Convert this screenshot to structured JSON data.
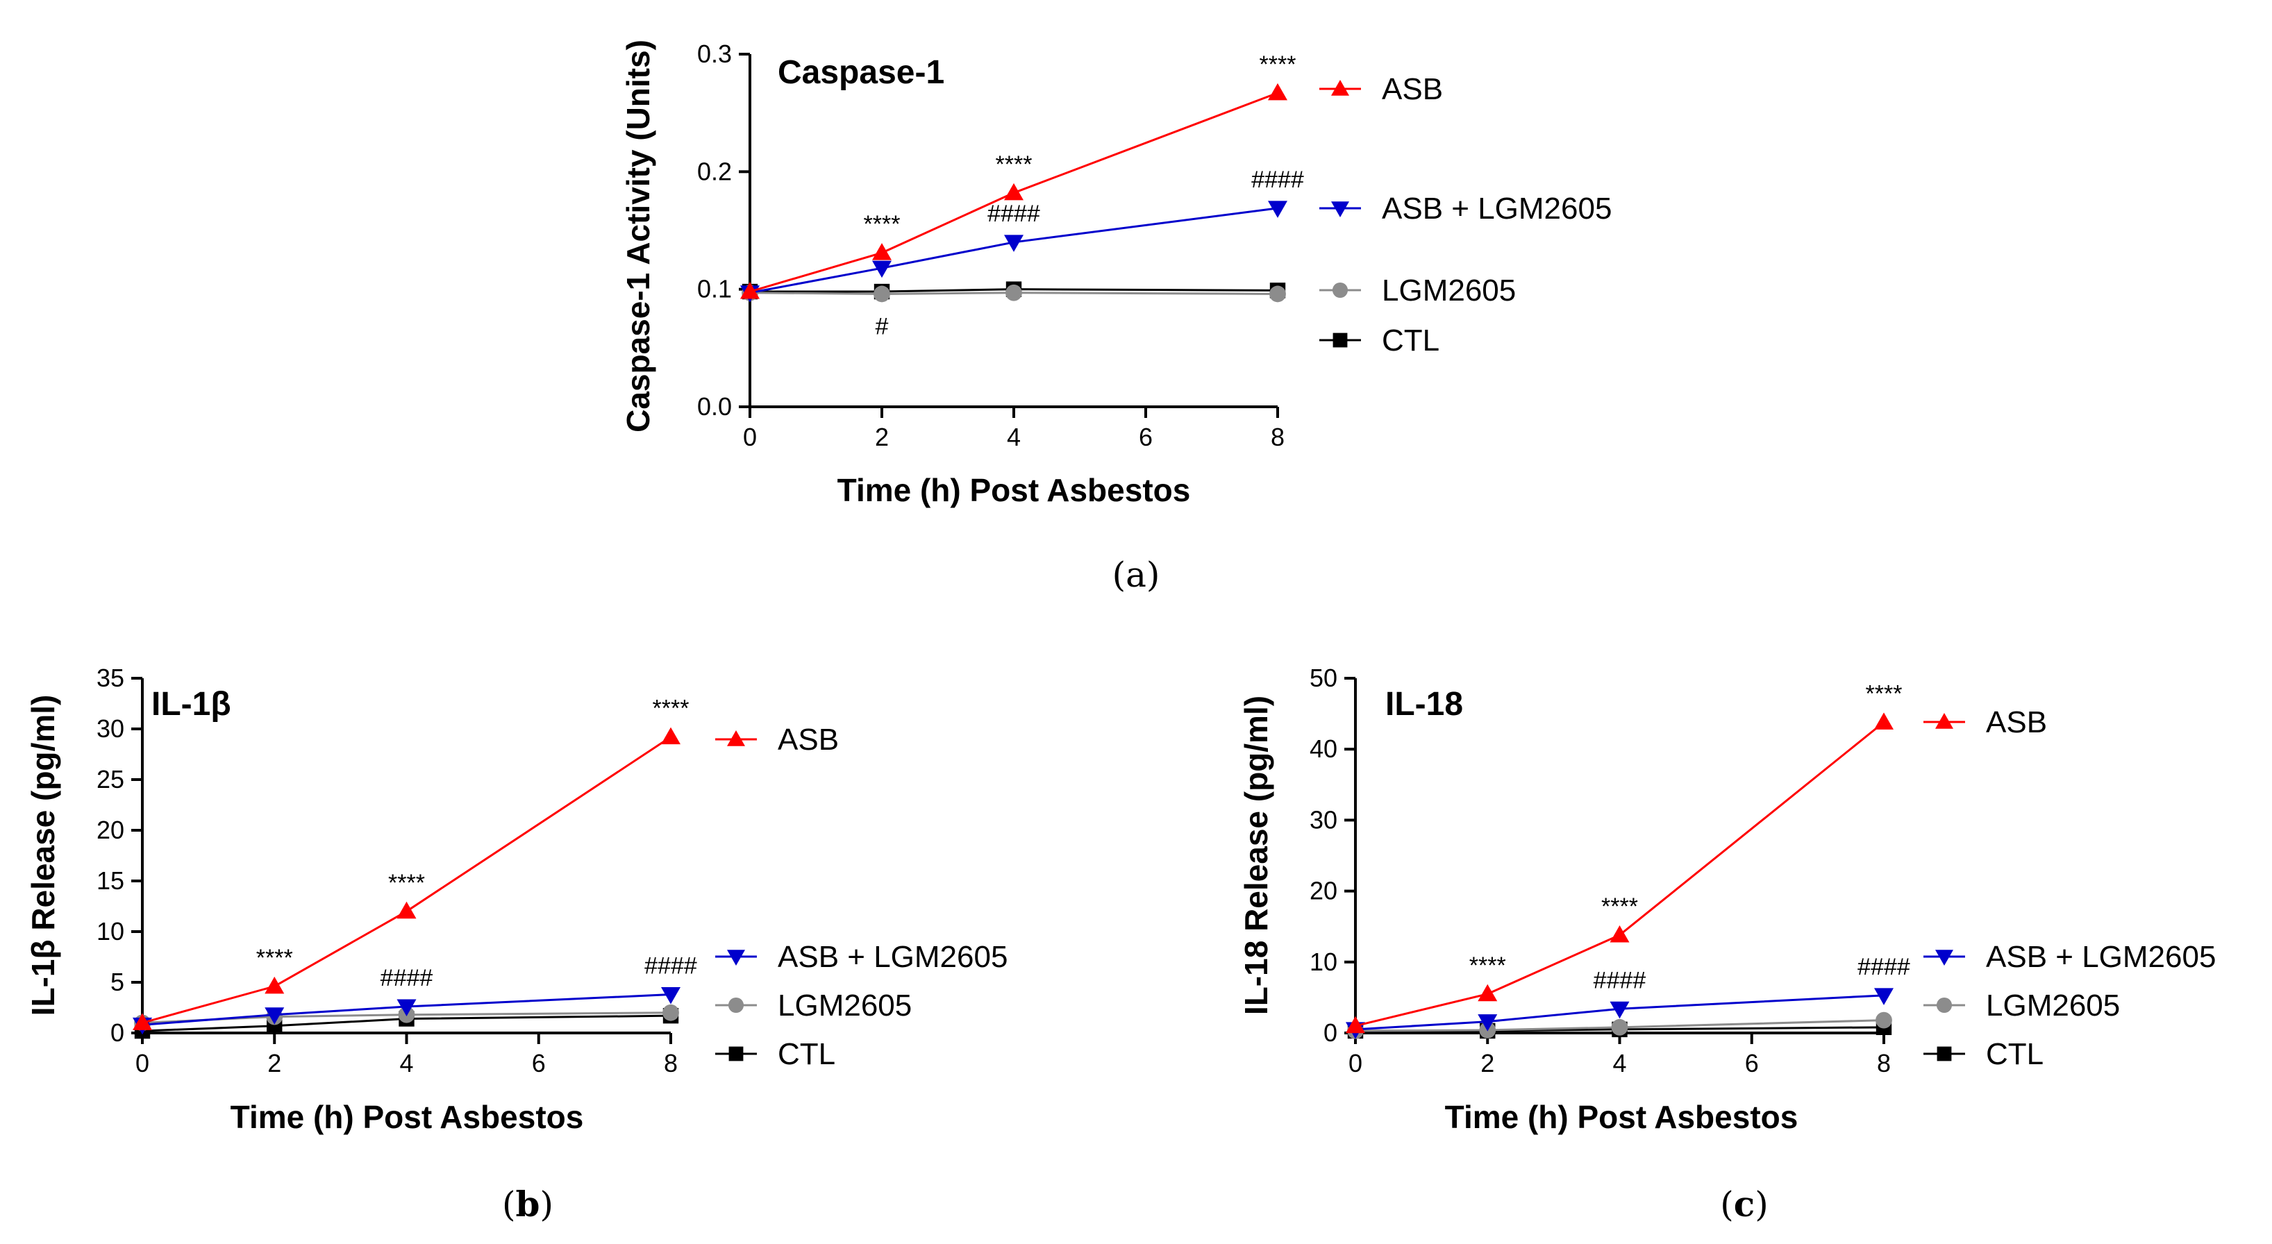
{
  "chart_data": [
    {
      "type": "line",
      "panel": "a",
      "panel_label": "a",
      "title": "Caspase-1",
      "xlabel": "Time (h) Post Asbestos",
      "ylabel": "Caspase-1 Activity (Units)",
      "xlim": [
        0,
        8
      ],
      "ylim": [
        0,
        0.3
      ],
      "xticks": [
        0,
        2,
        4,
        6,
        8
      ],
      "xtick_labels": [
        "0",
        "2",
        "4",
        "6",
        "8"
      ],
      "yticks": [
        0,
        0.1,
        0.2,
        0.3
      ],
      "ytick_labels": [
        "0.0",
        "0.1",
        "0.2",
        "0.3"
      ],
      "x": [
        0,
        2,
        4,
        8
      ],
      "series": [
        {
          "name": "ASB",
          "color": "#ff0000",
          "marker": "triangle-up",
          "values": [
            0.098,
            0.131,
            0.182,
            0.267
          ]
        },
        {
          "name": "ASB + LGM2605",
          "color": "#0000cc",
          "marker": "triangle-down",
          "values": [
            0.097,
            0.118,
            0.14,
            0.169
          ]
        },
        {
          "name": "LGM2605",
          "color": "#8c8c8c",
          "marker": "circle",
          "values": [
            0.097,
            0.096,
            0.097,
            0.096
          ]
        },
        {
          "name": "CTL",
          "color": "#000000",
          "marker": "square",
          "values": [
            0.098,
            0.098,
            0.1,
            0.099
          ]
        }
      ],
      "annotations": [
        {
          "text": "****",
          "x": 2,
          "y": 0.131,
          "series": "ASB",
          "position": "above"
        },
        {
          "text": "****",
          "x": 4,
          "y": 0.182,
          "series": "ASB",
          "position": "above"
        },
        {
          "text": "****",
          "x": 8,
          "y": 0.267,
          "series": "ASB",
          "position": "above"
        },
        {
          "text": "####",
          "x": 4,
          "y": 0.14,
          "series": "ASB + LGM2605",
          "position": "above"
        },
        {
          "text": "####",
          "x": 8,
          "y": 0.169,
          "series": "ASB + LGM2605",
          "position": "above"
        },
        {
          "text": "#",
          "x": 2,
          "y": 0.096,
          "series": "LGM2605",
          "position": "below"
        }
      ]
    },
    {
      "type": "line",
      "panel": "b",
      "panel_label": "b",
      "title": "IL-1β",
      "xlabel": "Time (h) Post Asbestos",
      "ylabel": "IL-1β Release (pg/ml)",
      "xlim": [
        0,
        8
      ],
      "ylim": [
        0,
        35
      ],
      "xticks": [
        0,
        2,
        4,
        6,
        8
      ],
      "xtick_labels": [
        "0",
        "2",
        "4",
        "6",
        "8"
      ],
      "yticks": [
        0,
        5,
        10,
        15,
        20,
        25,
        30,
        35
      ],
      "ytick_labels": [
        "0",
        "5",
        "10",
        "15",
        "20",
        "25",
        "30",
        "35"
      ],
      "x": [
        0,
        2,
        4,
        8
      ],
      "series": [
        {
          "name": "ASB",
          "color": "#ff0000",
          "marker": "triangle-up",
          "values": [
            1.0,
            4.6,
            12.0,
            29.2
          ]
        },
        {
          "name": "ASB + LGM2605",
          "color": "#0000cc",
          "marker": "triangle-down",
          "values": [
            0.8,
            1.8,
            2.6,
            3.8
          ]
        },
        {
          "name": "LGM2605",
          "color": "#8c8c8c",
          "marker": "circle",
          "values": [
            1.0,
            1.6,
            1.8,
            2.0
          ]
        },
        {
          "name": "CTL",
          "color": "#000000",
          "marker": "square",
          "values": [
            0.2,
            0.7,
            1.4,
            1.7
          ]
        }
      ],
      "annotations": [
        {
          "text": "****",
          "x": 2,
          "y": 4.6,
          "series": "ASB",
          "position": "above"
        },
        {
          "text": "****",
          "x": 4,
          "y": 12.0,
          "series": "ASB",
          "position": "above"
        },
        {
          "text": "****",
          "x": 8,
          "y": 29.2,
          "series": "ASB",
          "position": "above"
        },
        {
          "text": "####",
          "x": 4,
          "y": 2.6,
          "series": "ASB + LGM2605",
          "position": "above"
        },
        {
          "text": "####",
          "x": 8,
          "y": 3.8,
          "series": "ASB + LGM2605",
          "position": "above"
        }
      ]
    },
    {
      "type": "line",
      "panel": "c",
      "panel_label": "c",
      "title": "IL-18",
      "xlabel": "Time (h) Post Asbestos",
      "ylabel": "IL-18 Release (pg/ml)",
      "xlim": [
        0,
        8
      ],
      "ylim": [
        0,
        50
      ],
      "xticks": [
        0,
        2,
        4,
        6,
        8
      ],
      "xtick_labels": [
        "0",
        "2",
        "4",
        "6",
        "8"
      ],
      "yticks": [
        0,
        10,
        20,
        30,
        40,
        50
      ],
      "ytick_labels": [
        "0",
        "10",
        "20",
        "30",
        "40",
        "50"
      ],
      "x": [
        0,
        2,
        4,
        8
      ],
      "series": [
        {
          "name": "ASB",
          "color": "#ff0000",
          "marker": "triangle-up",
          "values": [
            1.0,
            5.5,
            13.8,
            43.8
          ]
        },
        {
          "name": "ASB + LGM2605",
          "color": "#0000cc",
          "marker": "triangle-down",
          "values": [
            0.5,
            1.6,
            3.4,
            5.3
          ]
        },
        {
          "name": "LGM2605",
          "color": "#8c8c8c",
          "marker": "circle",
          "values": [
            0.3,
            0.4,
            0.8,
            1.8
          ]
        },
        {
          "name": "CTL",
          "color": "#000000",
          "marker": "square",
          "values": [
            0.3,
            0.3,
            0.5,
            0.8
          ]
        }
      ],
      "annotations": [
        {
          "text": "****",
          "x": 2,
          "y": 5.5,
          "series": "ASB",
          "position": "above"
        },
        {
          "text": "****",
          "x": 4,
          "y": 13.8,
          "series": "ASB",
          "position": "above"
        },
        {
          "text": "****",
          "x": 8,
          "y": 43.8,
          "series": "ASB",
          "position": "above"
        },
        {
          "text": "####",
          "x": 4,
          "y": 3.4,
          "series": "ASB + LGM2605",
          "position": "above"
        },
        {
          "text": "####",
          "x": 8,
          "y": 5.3,
          "series": "ASB + LGM2605",
          "position": "above"
        }
      ]
    }
  ]
}
